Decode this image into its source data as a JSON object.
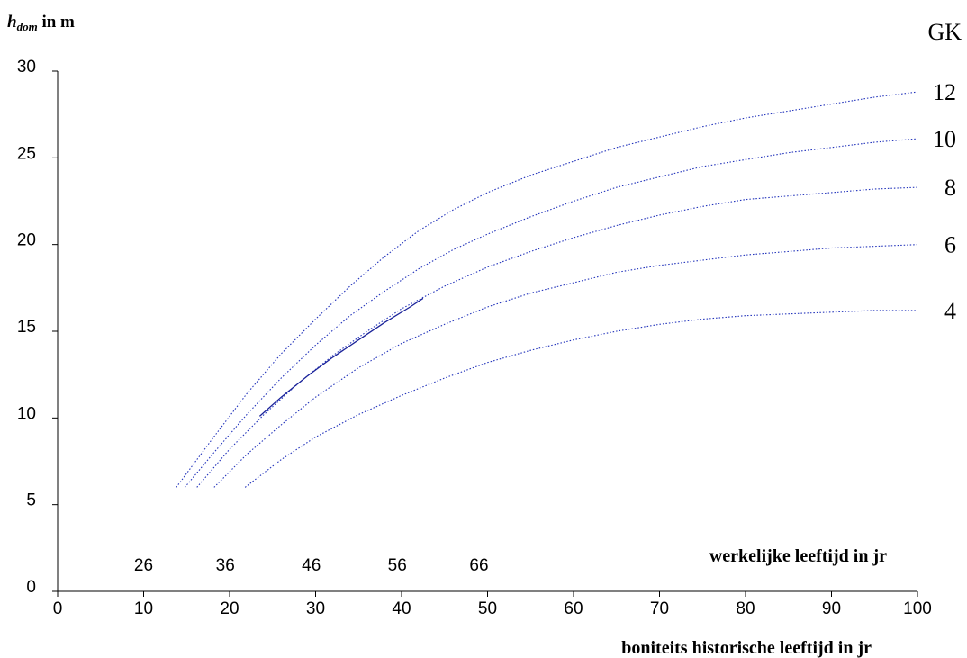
{
  "chart_data": {
    "type": "line",
    "ylabel": {
      "main": "h",
      "sub": "dom",
      "unit": " in m"
    },
    "xlabel": "boniteits historische leeftijd in jr",
    "secondary_xlabel": "werkelijke leeftijd in jr",
    "legend_title": "GK",
    "xlim": [
      0,
      100
    ],
    "ylim": [
      0,
      30
    ],
    "x_ticks": [
      0,
      10,
      20,
      30,
      40,
      50,
      60,
      70,
      80,
      90,
      100
    ],
    "y_ticks": [
      0,
      5,
      10,
      15,
      20,
      25,
      30
    ],
    "secondary_x_ticks": [
      {
        "x": 10,
        "label": "26"
      },
      {
        "x": 19.5,
        "label": "36"
      },
      {
        "x": 29.5,
        "label": "46"
      },
      {
        "x": 39.5,
        "label": "56"
      },
      {
        "x": 49,
        "label": "66"
      }
    ],
    "colors": {
      "curve": "#2233bb",
      "observed": "#1a2299",
      "axis": "#000000"
    },
    "series": [
      {
        "name": "12",
        "style": "dotted",
        "points": [
          [
            13.8,
            6.0
          ],
          [
            18,
            8.8
          ],
          [
            22,
            11.4
          ],
          [
            26,
            13.7
          ],
          [
            30,
            15.7
          ],
          [
            34,
            17.6
          ],
          [
            38,
            19.3
          ],
          [
            42,
            20.8
          ],
          [
            46,
            22.0
          ],
          [
            50,
            23.0
          ],
          [
            55,
            24.0
          ],
          [
            60,
            24.8
          ],
          [
            65,
            25.6
          ],
          [
            70,
            26.2
          ],
          [
            75,
            26.8
          ],
          [
            80,
            27.3
          ],
          [
            85,
            27.7
          ],
          [
            90,
            28.1
          ],
          [
            95,
            28.5
          ],
          [
            100,
            28.8
          ]
        ]
      },
      {
        "name": "10",
        "style": "dotted",
        "points": [
          [
            14.8,
            6.0
          ],
          [
            18,
            7.9
          ],
          [
            22,
            10.2
          ],
          [
            26,
            12.3
          ],
          [
            30,
            14.2
          ],
          [
            34,
            15.9
          ],
          [
            38,
            17.3
          ],
          [
            42,
            18.6
          ],
          [
            46,
            19.7
          ],
          [
            50,
            20.6
          ],
          [
            55,
            21.6
          ],
          [
            60,
            22.5
          ],
          [
            65,
            23.3
          ],
          [
            70,
            23.9
          ],
          [
            75,
            24.5
          ],
          [
            80,
            24.9
          ],
          [
            85,
            25.3
          ],
          [
            90,
            25.6
          ],
          [
            95,
            25.9
          ],
          [
            100,
            26.1
          ]
        ]
      },
      {
        "name": "8",
        "style": "dotted",
        "points": [
          [
            16.2,
            6.0
          ],
          [
            20,
            8.2
          ],
          [
            24,
            10.2
          ],
          [
            28,
            12.0
          ],
          [
            32,
            13.6
          ],
          [
            36,
            15.0
          ],
          [
            40,
            16.3
          ],
          [
            45,
            17.6
          ],
          [
            50,
            18.7
          ],
          [
            55,
            19.6
          ],
          [
            60,
            20.4
          ],
          [
            65,
            21.1
          ],
          [
            70,
            21.7
          ],
          [
            75,
            22.2
          ],
          [
            80,
            22.6
          ],
          [
            85,
            22.8
          ],
          [
            90,
            23.0
          ],
          [
            95,
            23.2
          ],
          [
            100,
            23.3
          ]
        ]
      },
      {
        "name": "6",
        "style": "dotted",
        "points": [
          [
            18.2,
            6.0
          ],
          [
            22,
            7.9
          ],
          [
            26,
            9.6
          ],
          [
            30,
            11.2
          ],
          [
            35,
            12.9
          ],
          [
            40,
            14.3
          ],
          [
            45,
            15.4
          ],
          [
            50,
            16.4
          ],
          [
            55,
            17.2
          ],
          [
            60,
            17.8
          ],
          [
            65,
            18.4
          ],
          [
            70,
            18.8
          ],
          [
            75,
            19.1
          ],
          [
            80,
            19.4
          ],
          [
            85,
            19.6
          ],
          [
            90,
            19.8
          ],
          [
            95,
            19.9
          ],
          [
            100,
            20.0
          ]
        ]
      },
      {
        "name": "4",
        "style": "dotted",
        "points": [
          [
            21.8,
            6.0
          ],
          [
            26,
            7.6
          ],
          [
            30,
            8.9
          ],
          [
            35,
            10.2
          ],
          [
            40,
            11.3
          ],
          [
            45,
            12.3
          ],
          [
            50,
            13.2
          ],
          [
            55,
            13.9
          ],
          [
            60,
            14.5
          ],
          [
            65,
            15.0
          ],
          [
            70,
            15.4
          ],
          [
            75,
            15.7
          ],
          [
            80,
            15.9
          ],
          [
            85,
            16.0
          ],
          [
            90,
            16.1
          ],
          [
            95,
            16.2
          ],
          [
            100,
            16.2
          ]
        ]
      },
      {
        "name": "",
        "style": "solid",
        "points": [
          [
            23.5,
            10.1
          ],
          [
            26,
            11.2
          ],
          [
            29,
            12.4
          ],
          [
            32,
            13.5
          ],
          [
            35,
            14.5
          ],
          [
            38,
            15.5
          ],
          [
            41,
            16.4
          ],
          [
            42.5,
            16.9
          ]
        ]
      }
    ]
  }
}
